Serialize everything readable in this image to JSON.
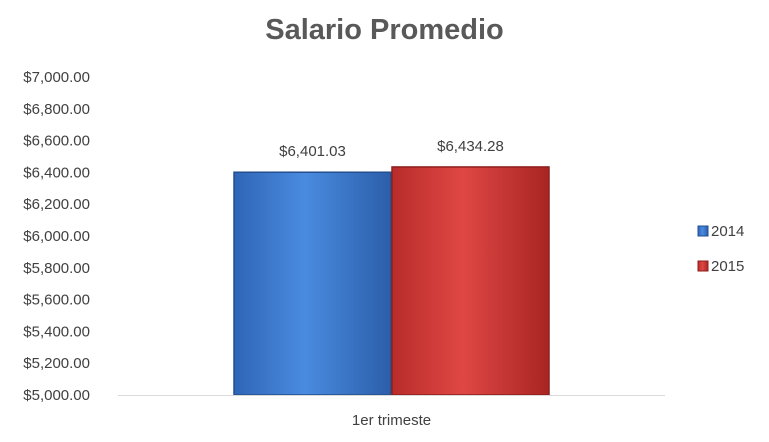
{
  "chart_data": {
    "type": "bar",
    "title": "Salario Promedio",
    "categories": [
      "1er trimeste"
    ],
    "series": [
      {
        "name": "2014",
        "values": [
          6401.03
        ],
        "label": "$6,401.03",
        "color": "#3f7fd6"
      },
      {
        "name": "2015",
        "values": [
          6434.28
        ],
        "label": "$6,434.28",
        "color": "#d63c3a"
      }
    ],
    "ylim": [
      5000,
      7000
    ],
    "yticks": [
      "$5,000.00",
      "$5,200.00",
      "$5,400.00",
      "$5,600.00",
      "$5,800.00",
      "$6,000.00",
      "$6,200.00",
      "$6,400.00",
      "$6,600.00",
      "$6,800.00",
      "$7,000.00"
    ],
    "ytick_values": [
      5000,
      5200,
      5400,
      5600,
      5800,
      6000,
      6200,
      6400,
      6600,
      6800,
      7000
    ],
    "grid": false,
    "legend": "right"
  }
}
